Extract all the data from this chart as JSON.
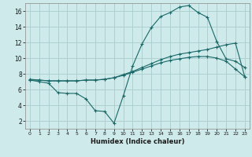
{
  "xlabel": "Humidex (Indice chaleur)",
  "background_color": "#ceeaea",
  "grid_color": "#aed0d0",
  "line_color": "#1a6868",
  "xlim": [
    -0.5,
    23.5
  ],
  "ylim": [
    1,
    17
  ],
  "xticks": [
    0,
    1,
    2,
    3,
    4,
    5,
    6,
    7,
    8,
    9,
    10,
    11,
    12,
    13,
    14,
    15,
    16,
    17,
    18,
    19,
    20,
    21,
    22,
    23
  ],
  "yticks": [
    2,
    4,
    6,
    8,
    10,
    12,
    14,
    16
  ],
  "line1_x": [
    0,
    1,
    2,
    3,
    4,
    5,
    6,
    7,
    8,
    9,
    10,
    11,
    12,
    13,
    14,
    15,
    16,
    17,
    18,
    19,
    20,
    21,
    22,
    23
  ],
  "line1_y": [
    7.2,
    7.0,
    6.8,
    5.6,
    5.5,
    5.5,
    4.8,
    3.3,
    3.2,
    1.7,
    5.2,
    9.0,
    11.8,
    13.9,
    15.3,
    15.8,
    16.5,
    16.7,
    15.8,
    15.2,
    12.1,
    9.9,
    9.6,
    8.8
  ],
  "line2_x": [
    0,
    1,
    2,
    3,
    4,
    5,
    6,
    7,
    8,
    9,
    10,
    11,
    12,
    13,
    14,
    15,
    16,
    17,
    18,
    19,
    20,
    21,
    22,
    23
  ],
  "line2_y": [
    7.3,
    7.2,
    7.1,
    7.1,
    7.1,
    7.1,
    7.2,
    7.2,
    7.3,
    7.5,
    7.8,
    8.2,
    8.6,
    9.0,
    9.4,
    9.7,
    9.9,
    10.1,
    10.2,
    10.2,
    10.0,
    9.6,
    8.6,
    7.6
  ],
  "line3_x": [
    0,
    1,
    2,
    3,
    4,
    5,
    6,
    7,
    8,
    9,
    10,
    11,
    12,
    13,
    14,
    15,
    16,
    17,
    18,
    19,
    20,
    21,
    22,
    23
  ],
  "line3_y": [
    7.2,
    7.2,
    7.1,
    7.1,
    7.1,
    7.1,
    7.2,
    7.2,
    7.3,
    7.5,
    7.9,
    8.3,
    8.8,
    9.3,
    9.8,
    10.2,
    10.5,
    10.7,
    10.9,
    11.1,
    11.4,
    11.7,
    11.9,
    7.6
  ]
}
